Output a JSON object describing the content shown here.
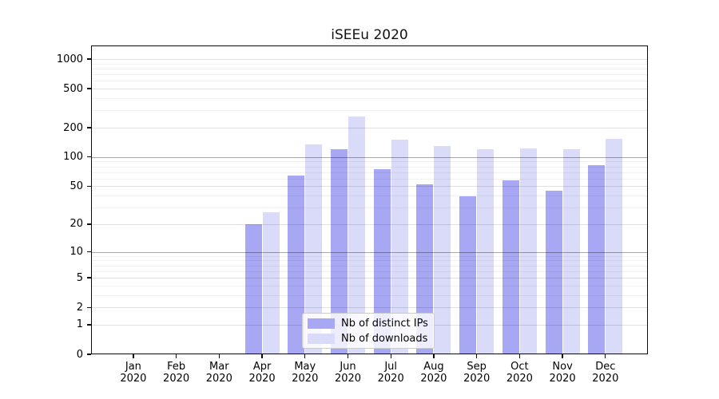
{
  "figure": {
    "background": "#ffffff"
  },
  "chart_data": {
    "type": "bar",
    "title": "iSEEu 2020",
    "xlabel": "",
    "ylabel": "",
    "x_axis": {
      "categories": [
        "Jan",
        "Feb",
        "Mar",
        "Apr",
        "May",
        "Jun",
        "Jul",
        "Aug",
        "Sep",
        "Oct",
        "Nov",
        "Dec"
      ],
      "year_label": "2020"
    },
    "y_axis": {
      "scale": "log1p",
      "ticks": [
        0,
        1,
        2,
        5,
        10,
        20,
        50,
        100,
        200,
        500,
        1000
      ],
      "minor_ticks": [
        3,
        4,
        6,
        7,
        8,
        9,
        30,
        40,
        60,
        70,
        80,
        90,
        300,
        400,
        600,
        700,
        800,
        900
      ],
      "emphasis_ticks": [
        10,
        100
      ],
      "range": [
        0,
        1367
      ]
    },
    "series": [
      {
        "name": "Nb of distinct IPs",
        "color": "#a7a7f3",
        "values": [
          0,
          0,
          0,
          20,
          65,
          120,
          75,
          52,
          39,
          58,
          45,
          83
        ]
      },
      {
        "name": "Nb of downloads",
        "color": "#dadaf9",
        "values": [
          0,
          0,
          0,
          27,
          135,
          260,
          150,
          130,
          120,
          122,
          120,
          155
        ]
      }
    ],
    "legend": {
      "position": "lower-center",
      "entries": [
        "Nb of distinct IPs",
        "Nb of downloads"
      ]
    },
    "grid": true
  },
  "colors": {
    "spine": "#0a0a0a",
    "text": "#000000",
    "grid_minor": "rgba(0,0,0,0.055)",
    "grid_major": "rgba(0,0,0,0.12)",
    "grid_emphasis": "rgba(0,0,0,0.34)",
    "legend_border": "#cccccc",
    "legend_background": "rgba(255,255,255,0.8)"
  }
}
